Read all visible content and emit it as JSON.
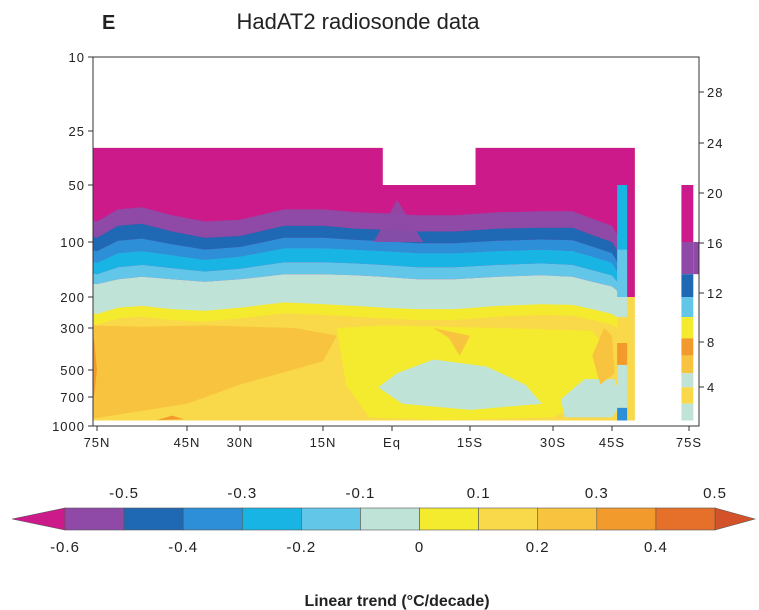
{
  "chart_data": {
    "type": "heatmap",
    "panel_label": "E",
    "title": "HadAT2 radiosonde data",
    "x_ticks": [
      "75N",
      "45N",
      "30N",
      "15N",
      "Eq",
      "15S",
      "30S",
      "45S",
      "75S"
    ],
    "x_tick_lat": [
      75,
      45,
      30,
      15,
      0,
      -15,
      -30,
      -45,
      -75
    ],
    "y_left_ticks": [
      "10",
      "25",
      "50",
      "100",
      "200",
      "300",
      "500",
      "700",
      "1000"
    ],
    "y_left_hpa": [
      10,
      25,
      50,
      100,
      200,
      300,
      500,
      700,
      1000
    ],
    "y_right_ticks": [
      "28",
      "24",
      "20",
      "16",
      "12",
      "8",
      "4"
    ],
    "y_right_km": [
      28,
      24,
      20,
      16,
      12,
      8,
      4
    ],
    "colorbar": {
      "title": "Linear trend (°C/decade)",
      "top_labels": [
        "-0.5",
        "-0.3",
        "-0.1",
        "0.1",
        "0.3",
        "0.5"
      ],
      "bottom_labels": [
        "-0.6",
        "-0.4",
        "-0.2",
        "0",
        "0.2",
        "0.4",
        "0.6"
      ],
      "colors": [
        "#cc1a8a",
        "#8e4aa6",
        "#1f68b4",
        "#2c8fd8",
        "#18b4e4",
        "#62c6e9",
        "#bfe3d6",
        "#f4ea2e",
        "#f9d94a",
        "#f8c43f",
        "#f29a2c",
        "#e6702a",
        "#d3522a"
      ]
    },
    "layers_approx": {
      "lat": [
        80,
        75,
        68,
        60,
        50,
        40,
        30,
        22,
        15,
        8,
        2,
        -5,
        -12,
        -20,
        -28,
        -35,
        -40,
        -45,
        -50
      ],
      "purple_to_blue_hpa": [
        90,
        95,
        82,
        80,
        88,
        95,
        93,
        82,
        82,
        85,
        86,
        88,
        88,
        85,
        84,
        84,
        92,
        100,
        130
      ],
      "blue_to_cyan_hpa": [
        125,
        130,
        115,
        112,
        118,
        125,
        120,
        108,
        108,
        110,
        112,
        115,
        115,
        112,
        110,
        112,
        120,
        130,
        170
      ],
      "cyan_to_mint_hpa": [
        165,
        170,
        160,
        155,
        160,
        165,
        160,
        150,
        150,
        152,
        155,
        160,
        160,
        155,
        152,
        155,
        165,
        175,
        200
      ],
      "mint_to_yellow_hpa": [
        240,
        250,
        230,
        225,
        235,
        240,
        230,
        215,
        220,
        225,
        230,
        235,
        235,
        225,
        220,
        222,
        235,
        250,
        280
      ]
    },
    "data_top_hpa": 31,
    "missing_blocks": [
      {
        "lat_from": 2,
        "lat_to": -16,
        "top_hpa": 50,
        "note": "gap above 50 hPa"
      },
      {
        "lat_from": -59,
        "lat_to": -71,
        "top_hpa": 10,
        "note": "no data"
      }
    ]
  }
}
